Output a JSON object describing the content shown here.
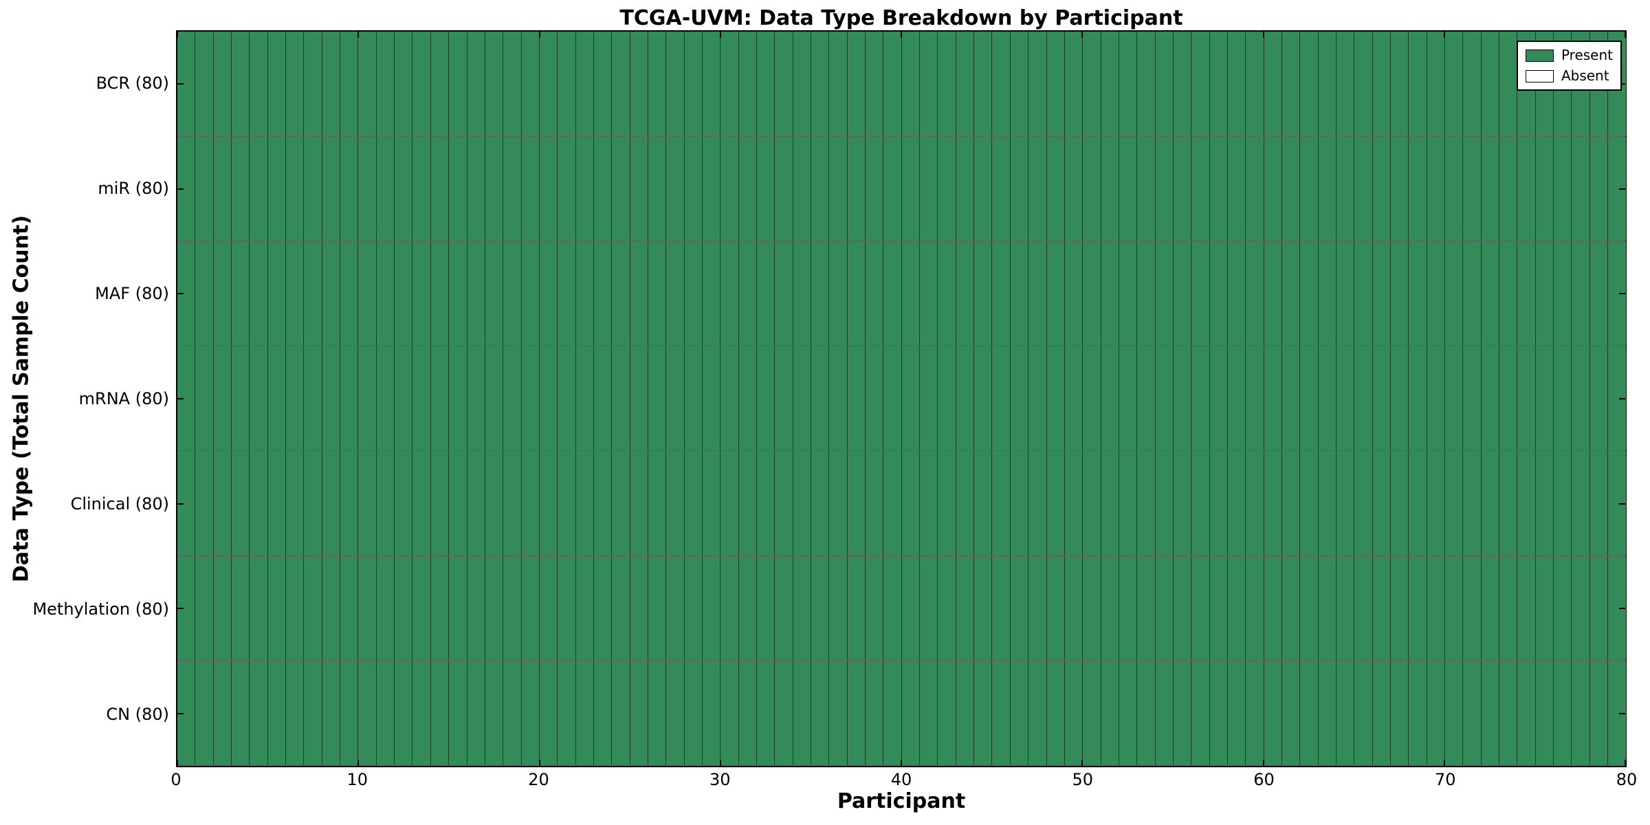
{
  "chart_data": {
    "type": "heatmap",
    "title": "TCGA-UVM: Data Type Breakdown by Participant",
    "xlabel": "Participant",
    "ylabel": "Data Type (Total Sample Count)",
    "x_range": [
      0,
      80
    ],
    "x_ticks": [
      0,
      10,
      20,
      30,
      40,
      50,
      60,
      70,
      80
    ],
    "n_participants": 80,
    "grid": true,
    "legend_position": "upper right",
    "colors": {
      "present": "#348a58",
      "absent": "#ffffff",
      "cell_edge": "rgba(0,0,0,0.55)",
      "axis": "#000000"
    },
    "legend": [
      {
        "label": "Present",
        "color": "#348a58"
      },
      {
        "label": "Absent",
        "color": "#ffffff"
      }
    ],
    "rows": [
      {
        "label": "BCR (80)",
        "data_type": "BCR",
        "total_samples": 80,
        "present_count": 80,
        "absent_count": 0
      },
      {
        "label": "miR (80)",
        "data_type": "miR",
        "total_samples": 80,
        "present_count": 80,
        "absent_count": 0
      },
      {
        "label": "MAF (80)",
        "data_type": "MAF",
        "total_samples": 80,
        "present_count": 80,
        "absent_count": 0
      },
      {
        "label": "mRNA (80)",
        "data_type": "mRNA",
        "total_samples": 80,
        "present_count": 80,
        "absent_count": 0
      },
      {
        "label": "Clinical (80)",
        "data_type": "Clinical",
        "total_samples": 80,
        "present_count": 80,
        "absent_count": 0
      },
      {
        "label": "Methylation (80)",
        "data_type": "Methylation",
        "total_samples": 80,
        "present_count": 80,
        "absent_count": 0
      },
      {
        "label": "CN (80)",
        "data_type": "CN",
        "total_samples": 80,
        "present_count": 80,
        "absent_count": 0
      }
    ]
  }
}
